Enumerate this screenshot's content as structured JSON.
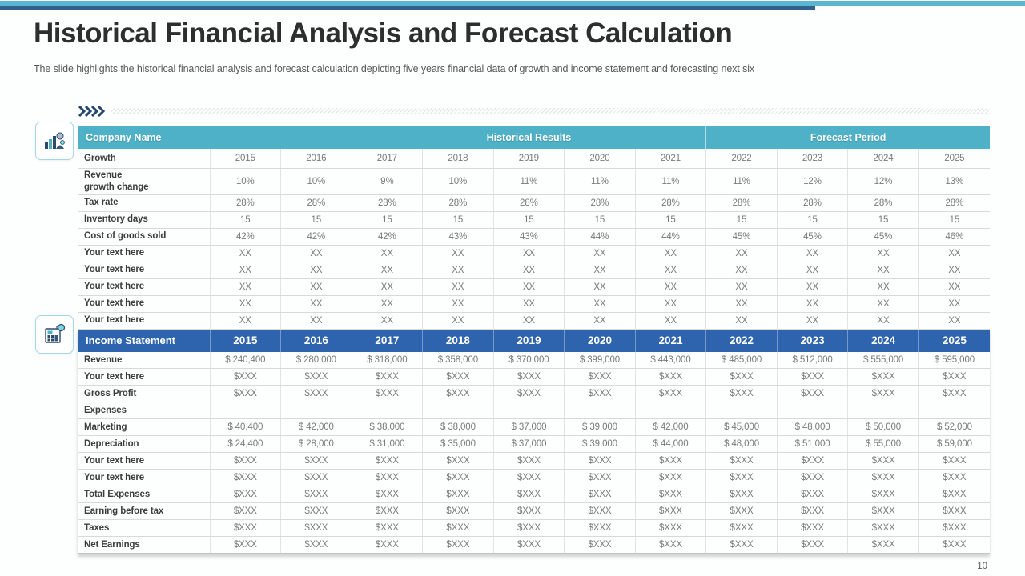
{
  "header": {
    "title": "Historical Financial Analysis and Forecast Calculation",
    "subtitle": "The slide highlights the historical financial analysis and forecast calculation depicting five years financial data of growth and income statement and forecasting next six"
  },
  "colors": {
    "accent_teal": "#4fb1c7",
    "accent_blue": "#2e63ad",
    "top_bar_teal": "#5ab7d2",
    "top_bar_navy": "#31618f"
  },
  "growth_table": {
    "section_headers": [
      "Company Name",
      "Historical Results",
      "Forecast Period"
    ],
    "years_label": "Growth",
    "years": [
      "2015",
      "2016",
      "2017",
      "2018",
      "2019",
      "2020",
      "2021",
      "2022",
      "2023",
      "2024",
      "2025"
    ],
    "rows": [
      {
        "label": "Revenue\ngrowth change",
        "values": [
          "10%",
          "10%",
          "9%",
          "10%",
          "11%",
          "11%",
          "11%",
          "11%",
          "12%",
          "12%",
          "13%"
        ]
      },
      {
        "label": "Tax rate",
        "values": [
          "28%",
          "28%",
          "28%",
          "28%",
          "28%",
          "28%",
          "28%",
          "28%",
          "28%",
          "28%",
          "28%"
        ]
      },
      {
        "label": "Inventory days",
        "values": [
          "15",
          "15",
          "15",
          "15",
          "15",
          "15",
          "15",
          "15",
          "15",
          "15",
          "15"
        ]
      },
      {
        "label": "Cost of goods sold",
        "values": [
          "42%",
          "42%",
          "42%",
          "43%",
          "43%",
          "44%",
          "44%",
          "45%",
          "45%",
          "45%",
          "46%"
        ]
      },
      {
        "label": "Your text here",
        "values": [
          "XX",
          "XX",
          "XX",
          "XX",
          "XX",
          "XX",
          "XX",
          "XX",
          "XX",
          "XX",
          "XX"
        ]
      },
      {
        "label": "Your text here",
        "values": [
          "XX",
          "XX",
          "XX",
          "XX",
          "XX",
          "XX",
          "XX",
          "XX",
          "XX",
          "XX",
          "XX"
        ]
      },
      {
        "label": "Your text here",
        "values": [
          "XX",
          "XX",
          "XX",
          "XX",
          "XX",
          "XX",
          "XX",
          "XX",
          "XX",
          "XX",
          "XX"
        ]
      },
      {
        "label": "Your text here",
        "values": [
          "XX",
          "XX",
          "XX",
          "XX",
          "XX",
          "XX",
          "XX",
          "XX",
          "XX",
          "XX",
          "XX"
        ]
      },
      {
        "label": "Your text here",
        "values": [
          "XX",
          "XX",
          "XX",
          "XX",
          "XX",
          "XX",
          "XX",
          "XX",
          "XX",
          "XX",
          "XX"
        ]
      }
    ]
  },
  "income_table": {
    "header_label": "Income Statement",
    "years": [
      "2015",
      "2016",
      "2017",
      "2018",
      "2019",
      "2020",
      "2021",
      "2022",
      "2023",
      "2024",
      "2025"
    ],
    "rows": [
      {
        "label": "Revenue",
        "values": [
          "$ 240,400",
          "$ 280,000",
          "$ 318,000",
          "$ 358,000",
          "$ 370,000",
          "$ 399,000",
          "$ 443,000",
          "$ 485,000",
          "$ 512,000",
          "$ 555,000",
          "$ 595,000"
        ]
      },
      {
        "label": "Your text here",
        "values": [
          "$XXX",
          "$XXX",
          "$XXX",
          "$XXX",
          "$XXX",
          "$XXX",
          "$XXX",
          "$XXX",
          "$XXX",
          "$XXX",
          "$XXX"
        ]
      },
      {
        "label": "Gross Profit",
        "values": [
          "$XXX",
          "$XXX",
          "$XXX",
          "$XXX",
          "$XXX",
          "$XXX",
          "$XXX",
          "$XXX",
          "$XXX",
          "$XXX",
          "$XXX"
        ]
      },
      {
        "label": "Expenses",
        "values": [
          "",
          "",
          "",
          "",
          "",
          "",
          "",
          "",
          "",
          "",
          ""
        ]
      },
      {
        "label": "Marketing",
        "values": [
          "$ 40,400",
          "$ 42,000",
          "$ 38,000",
          "$ 38,000",
          "$ 37,000",
          "$ 39,000",
          "$ 42,000",
          "$ 45,000",
          "$ 48,000",
          "$ 50,000",
          "$ 52,000"
        ]
      },
      {
        "label": "Depreciation",
        "values": [
          "$ 24,400",
          "$ 28,000",
          "$ 31,000",
          "$ 35,000",
          "$ 37,000",
          "$ 39,000",
          "$ 44,000",
          "$ 48,000",
          "$ 51,000",
          "$ 55,000",
          "$ 59,000"
        ]
      },
      {
        "label": "Your text here",
        "values": [
          "$XXX",
          "$XXX",
          "$XXX",
          "$XXX",
          "$XXX",
          "$XXX",
          "$XXX",
          "$XXX",
          "$XXX",
          "$XXX",
          "$XXX"
        ]
      },
      {
        "label": "Your text here",
        "values": [
          "$XXX",
          "$XXX",
          "$XXX",
          "$XXX",
          "$XXX",
          "$XXX",
          "$XXX",
          "$XXX",
          "$XXX",
          "$XXX",
          "$XXX"
        ]
      },
      {
        "label": "Total Expenses",
        "values": [
          "$XXX",
          "$XXX",
          "$XXX",
          "$XXX",
          "$XXX",
          "$XXX",
          "$XXX",
          "$XXX",
          "$XXX",
          "$XXX",
          "$XXX"
        ]
      },
      {
        "label": "Earning before tax",
        "values": [
          "$XXX",
          "$XXX",
          "$XXX",
          "$XXX",
          "$XXX",
          "$XXX",
          "$XXX",
          "$XXX",
          "$XXX",
          "$XXX",
          "$XXX"
        ]
      },
      {
        "label": "Taxes",
        "values": [
          "$XXX",
          "$XXX",
          "$XXX",
          "$XXX",
          "$XXX",
          "$XXX",
          "$XXX",
          "$XXX",
          "$XXX",
          "$XXX",
          "$XXX"
        ]
      },
      {
        "label": "Net Earnings",
        "values": [
          "$XXX",
          "$XXX",
          "$XXX",
          "$XXX",
          "$XXX",
          "$XXX",
          "$XXX",
          "$XXX",
          "$XXX",
          "$XXX",
          "$XXX"
        ]
      }
    ]
  },
  "footer": {
    "page_number": "10"
  }
}
